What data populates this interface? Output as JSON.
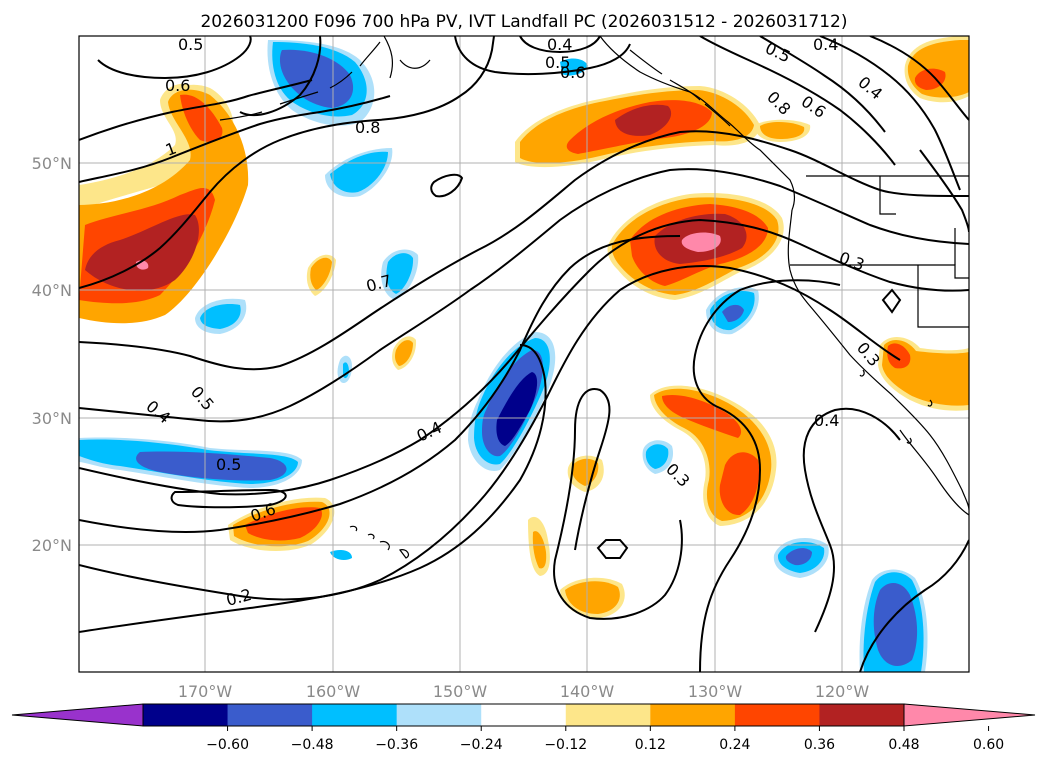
{
  "title": "2026031200 F096 700 hPa PV, IVT Landfall PC (2026031512 - 2026031712)",
  "lat_labels": [
    "50°N",
    "40°N",
    "30°N",
    "20°N"
  ],
  "lon_labels": [
    "170°W",
    "160°W",
    "150°W",
    "140°W",
    "130°W",
    "120°W"
  ],
  "colorbar": {
    "ticks": [
      "−0.60",
      "−0.48",
      "−0.36",
      "−0.24",
      "−0.12",
      "0.12",
      "0.24",
      "0.36",
      "0.48",
      "0.60"
    ],
    "colors": [
      "#9932cc",
      "#00008b",
      "#3a5ccc",
      "#00bfff",
      "#aee0fa",
      "#ffffff",
      "#fde68a",
      "#ffa500",
      "#ff4500",
      "#b22222",
      "#ff88aa"
    ]
  },
  "contour_labels": [
    "0.5",
    "0.6",
    "1",
    "0.8",
    "0.4",
    "0.5",
    "0.6",
    "0.5",
    "0.8",
    "0.6",
    "0.4",
    "0.4",
    "0.7",
    "0.5",
    "0.4",
    "0.4",
    "0.3",
    "0.3",
    "0.4",
    "0.3",
    "0.5",
    "0.6",
    "0.2"
  ]
}
